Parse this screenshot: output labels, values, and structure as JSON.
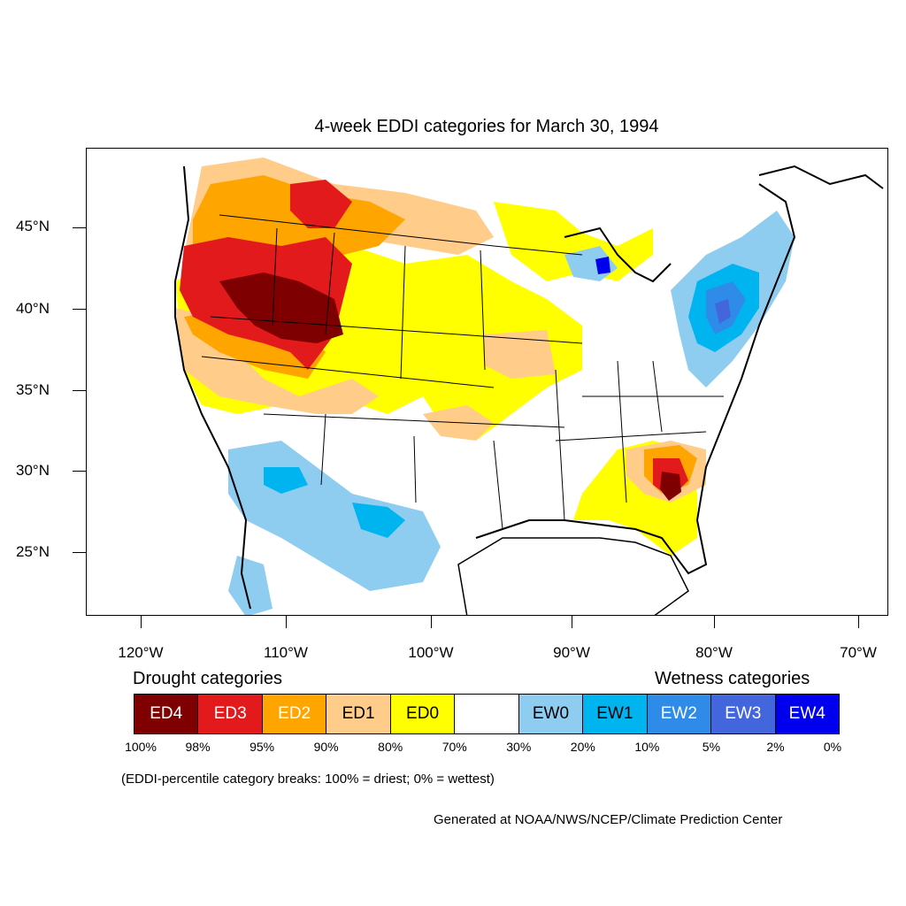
{
  "title": "4-week EDDI categories for March 30, 1994",
  "map": {
    "lat_labels": [
      "45°N",
      "40°N",
      "35°N",
      "30°N",
      "25°N"
    ],
    "lon_labels": [
      "120°W",
      "110°W",
      "100°W",
      "90°W",
      "80°W",
      "70°W"
    ]
  },
  "legend": {
    "drought_heading": "Drought categories",
    "wetness_heading": "Wetness categories",
    "categories": [
      {
        "label": "ED4",
        "color": "#7f0000",
        "text_color": "#ffffff"
      },
      {
        "label": "ED3",
        "color": "#e31a1c",
        "text_color": "#ffffff"
      },
      {
        "label": "ED2",
        "color": "#ffa500",
        "text_color": "#ffffff"
      },
      {
        "label": "ED1",
        "color": "#ffcc8a",
        "text_color": "#000000"
      },
      {
        "label": "ED0",
        "color": "#ffff00",
        "text_color": "#000000"
      },
      {
        "label": "",
        "color": "#ffffff",
        "text_color": "#000000"
      },
      {
        "label": "EW0",
        "color": "#8fcdf0",
        "text_color": "#000000"
      },
      {
        "label": "EW1",
        "color": "#00b4f0",
        "text_color": "#000000"
      },
      {
        "label": "EW2",
        "color": "#2e8be8",
        "text_color": "#ffffff"
      },
      {
        "label": "EW3",
        "color": "#4466dd",
        "text_color": "#ffffff"
      },
      {
        "label": "EW4",
        "color": "#0000ee",
        "text_color": "#ffffff"
      }
    ],
    "breaks": [
      "100%",
      "98%",
      "95%",
      "90%",
      "80%",
      "70%",
      "30%",
      "20%",
      "10%",
      "5%",
      "2%",
      "0%"
    ],
    "note": "(EDDI-percentile category breaks: 100% = driest; 0% = wettest)"
  },
  "credit": "Generated at NOAA/NWS/NCEP/Climate Prediction Center"
}
